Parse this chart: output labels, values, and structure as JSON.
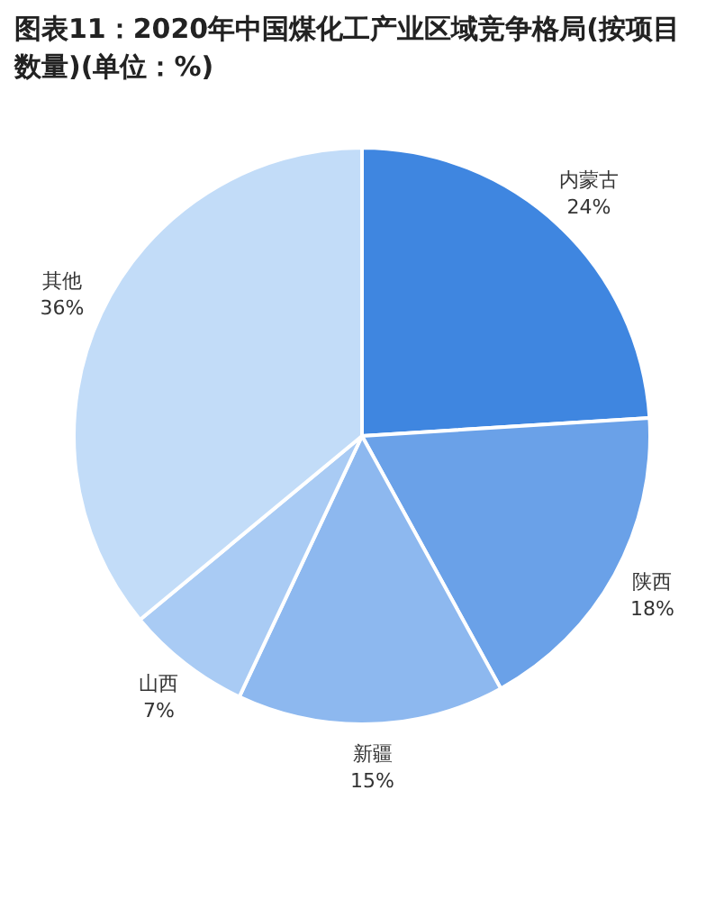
{
  "chart_data": {
    "type": "pie",
    "title": "图表11：2020年中国煤化工产业区域竞争格局(按项目数量)(单位：%)",
    "categories": [
      "内蒙古",
      "陕西",
      "新疆",
      "山西",
      "其他"
    ],
    "values": [
      24,
      18,
      15,
      7,
      36
    ],
    "value_labels": [
      "24%",
      "18%",
      "15%",
      "7%",
      "36%"
    ],
    "colors": [
      "#3f86e0",
      "#6aa1e8",
      "#8db8ef",
      "#a9cbf4",
      "#c2dcf8"
    ],
    "legend": false
  }
}
